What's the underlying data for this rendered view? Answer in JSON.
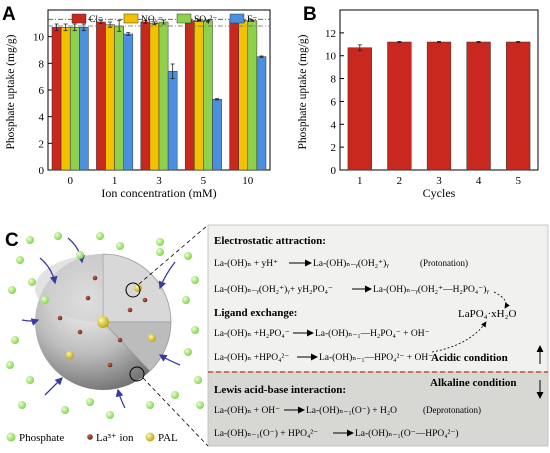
{
  "panel_a": {
    "letter": "A",
    "ylabel": "Phosphate uptake (mg/g)",
    "xlabel": "Ion concentration (mM)",
    "legend": [
      "Cl⁻",
      "NO₃⁻",
      "SO₄²⁻",
      "F⁻"
    ],
    "ytick_labels": [
      "0",
      "2",
      "4",
      "6",
      "8",
      "10"
    ],
    "xtick_labels": [
      "0",
      "1",
      "3",
      "5",
      "10"
    ]
  },
  "panel_b": {
    "letter": "B",
    "ylabel": "Phosphate uptake (mg/g)",
    "xlabel": "Cycles",
    "ytick_labels": [
      "0",
      "2",
      "4",
      "6",
      "8",
      "10",
      "12"
    ],
    "xtick_labels": [
      "1",
      "2",
      "3",
      "4",
      "5"
    ]
  },
  "chart_data": [
    {
      "type": "bar",
      "panel": "A",
      "categories": [
        "0",
        "1",
        "3",
        "5",
        "10"
      ],
      "series": [
        {
          "name": "Cl⁻",
          "color": "#c8281e",
          "values": [
            10.7,
            11.1,
            11.1,
            11.2,
            11.2
          ],
          "errors": [
            0.25,
            0.1,
            0.1,
            0.05,
            0.05
          ]
        },
        {
          "name": "NO₃⁻",
          "color": "#f2c200",
          "values": [
            10.7,
            10.9,
            11.0,
            11.2,
            11.2
          ],
          "errors": [
            0.25,
            0.2,
            0.1,
            0.05,
            0.05
          ]
        },
        {
          "name": "SO₄²⁻",
          "color": "#8ed14d",
          "values": [
            10.7,
            10.8,
            11.1,
            11.2,
            11.2
          ],
          "errors": [
            0.25,
            0.4,
            0.15,
            0.05,
            0.05
          ]
        },
        {
          "name": "F⁻",
          "color": "#4a8fe0",
          "values": [
            10.7,
            10.2,
            7.4,
            5.3,
            8.5
          ],
          "errors": [
            0.25,
            0.1,
            0.55,
            0.05,
            0.05
          ]
        }
      ],
      "reference_lines": [
        11.3,
        10.8
      ],
      "xlabel": "Ion concentration (mM)",
      "ylabel": "Phosphate uptake (mg/g)",
      "ylim": [
        0,
        12
      ]
    },
    {
      "type": "bar",
      "panel": "B",
      "categories": [
        "1",
        "2",
        "3",
        "4",
        "5"
      ],
      "series": [
        {
          "color": "#c8281e",
          "values": [
            10.7,
            11.2,
            11.2,
            11.2,
            11.2
          ],
          "errors": [
            0.25,
            0.05,
            0.05,
            0.05,
            0.05
          ]
        }
      ],
      "xlabel": "Cycles",
      "ylabel": "Phosphate uptake (mg/g)",
      "ylim": [
        0,
        14
      ]
    }
  ],
  "panel_c": {
    "letter": "C",
    "legend": {
      "phosphate": "Phosphate",
      "la_ion": "La³⁺ ion",
      "pal": "PAL"
    },
    "electrostatic": {
      "heading": "Electrostatic attraction:",
      "eq1_lhs": "La-(OH)ₙ + yH⁺",
      "eq1_rhs": "La-(OH)ₙ₋ᵧ(OH₂⁺)ᵧ",
      "eq1_note": "(Protonation)",
      "eq2_lhs": "La-(OH)ₙ₋ᵧ(OH₂⁺)ᵧ+ yH₂PO₄⁻",
      "eq2_rhs": "La-(OH)ₙ₋ᵧ(OH₂⁺—H₂PO₄⁻)ᵧ"
    },
    "ligand": {
      "heading": "Ligand exchange:",
      "eq1_lhs": "La-(OH)ₙ +H₂PO₄⁻",
      "eq1_rhs": "La-(OH)ₙ₋₁—H₂PO₄⁻ + OH⁻",
      "eq2_lhs": "La-(OH)ₙ +HPO₄²⁻",
      "eq2_rhs": "La-(OH)ₙ₋₁—HPO₄²⁻ + OH⁻"
    },
    "product": "LaPO₄·xH₂O",
    "acidic": "Acidic condition",
    "alkaline": "Alkaline condition",
    "lewis": {
      "heading": "Lewis acid-base interaction:",
      "eq1_lhs": "La-(OH)ₙ + OH⁻",
      "eq1_rhs": "La-(OH)ₙ₋₁(O⁻) + H₂O",
      "eq1_note": "(Deprotonation)",
      "eq2_lhs": "La-(OH)ₙ₋₁(O⁻) + HPO₄²⁻",
      "eq2_rhs": "La-(OH)ₙ₋₁(O⁻—HPO₄²⁻)"
    }
  }
}
